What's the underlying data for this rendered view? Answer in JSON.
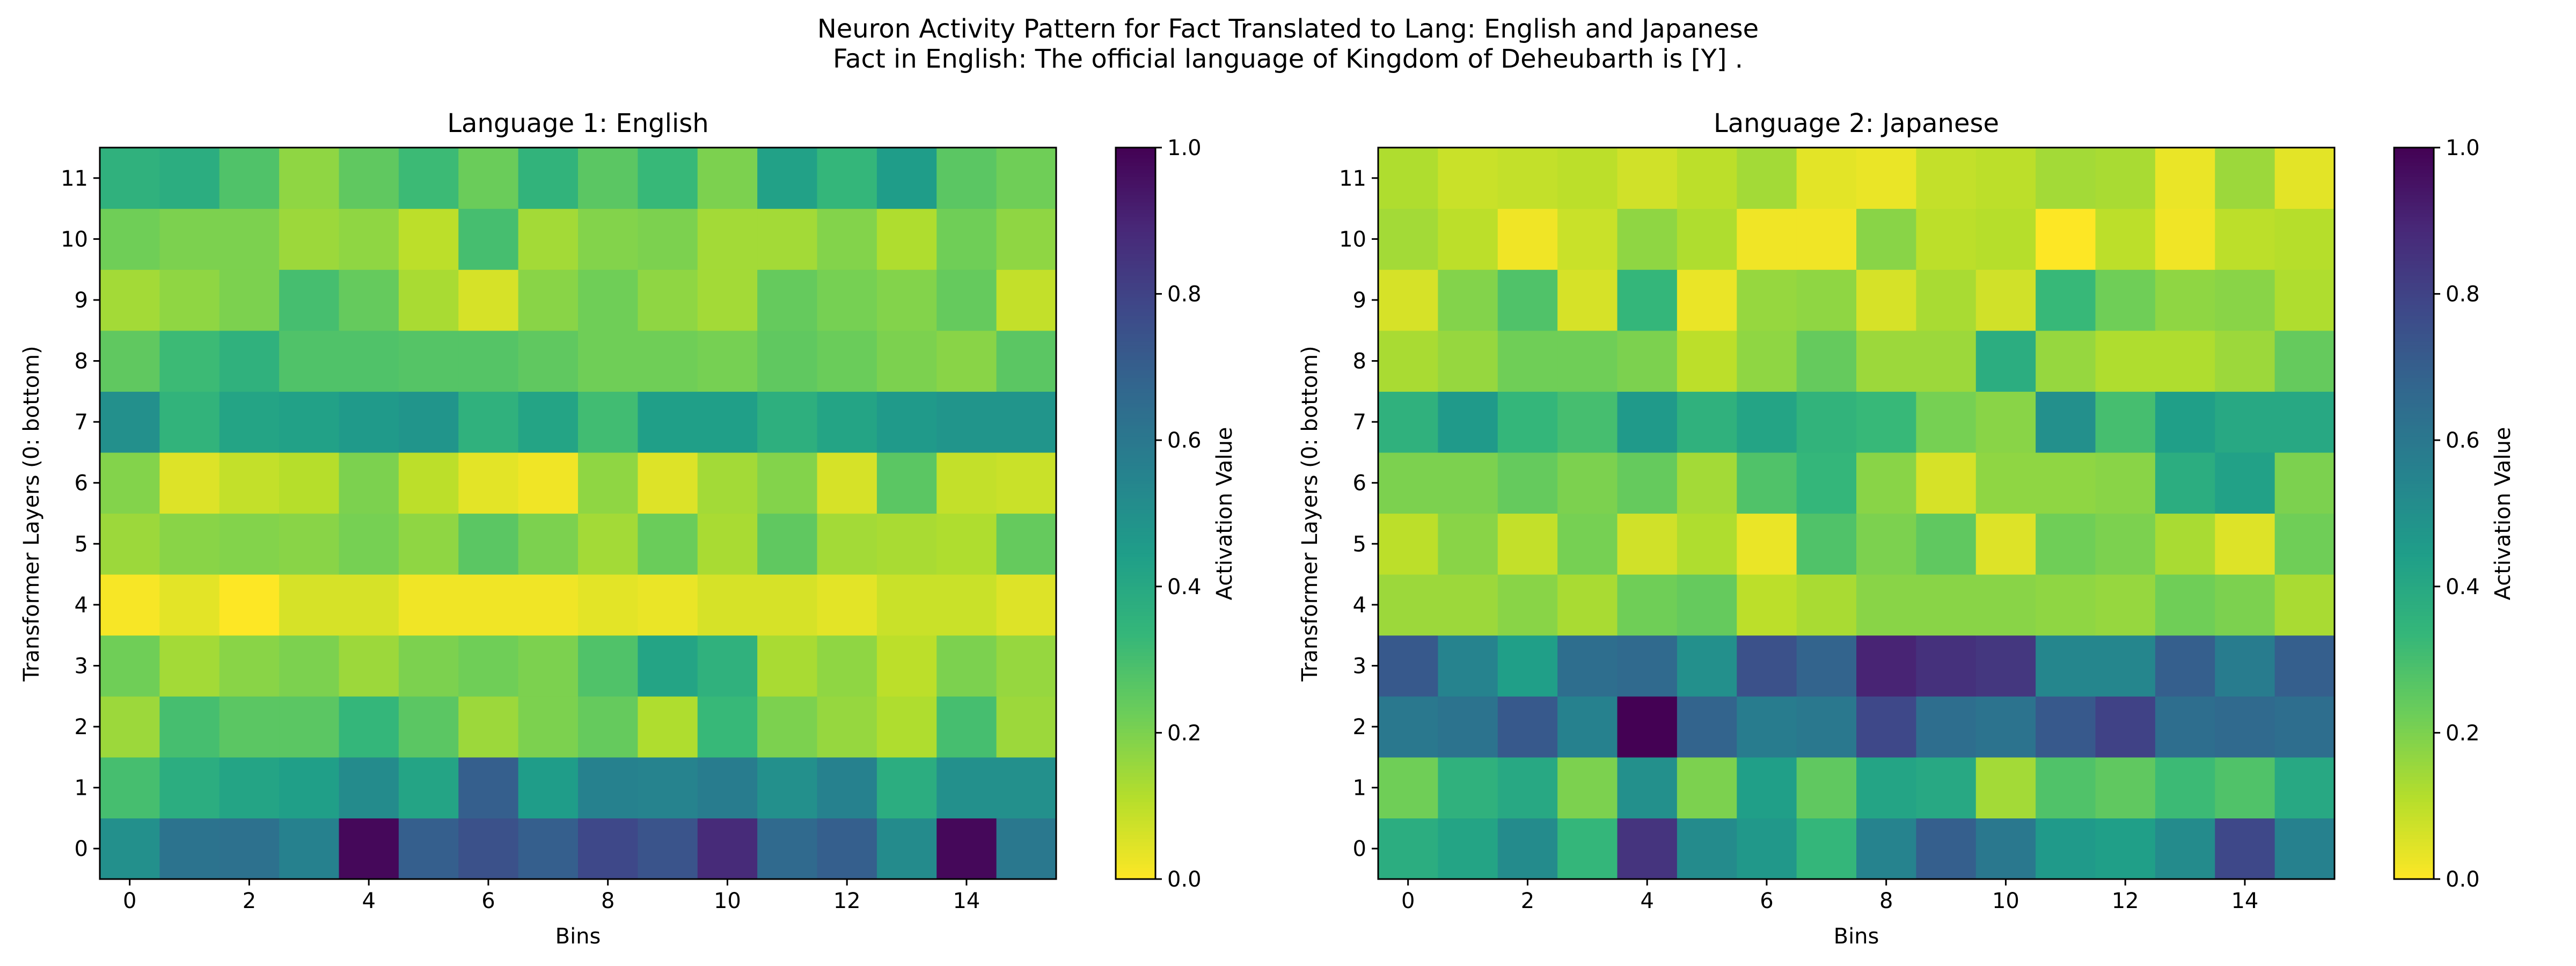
{
  "figure": {
    "title_line1": "Neuron Activity Pattern for Fact Translated to Lang: English and Japanese",
    "title_line2": "Fact in English: The official language of Kingdom of Deheubarth is [Y] ."
  },
  "colormap": "viridis_r",
  "colors": {
    "low": "#fde725",
    "mid": "#21918c",
    "high": "#440154"
  },
  "chart_data": [
    {
      "type": "heatmap",
      "title": "Language 1: English",
      "xlabel": "Bins",
      "ylabel": "Transformer Layers (0: bottom)",
      "colorbar_label": "Activation Value",
      "x_ticks": [
        "0",
        "2",
        "4",
        "6",
        "8",
        "10",
        "12",
        "14"
      ],
      "y_ticks": [
        "0",
        "1",
        "2",
        "3",
        "4",
        "5",
        "6",
        "7",
        "8",
        "9",
        "10",
        "11"
      ],
      "colorbar_ticks": [
        "0.0",
        "0.2",
        "0.4",
        "0.6",
        "0.8",
        "1.0"
      ],
      "vmin": 0.0,
      "vmax": 1.0,
      "bins": 16,
      "layers": 12,
      "values_by_layer": [
        [
          0.5,
          0.62,
          0.63,
          0.56,
          0.98,
          0.7,
          0.75,
          0.7,
          0.78,
          0.74,
          0.88,
          0.66,
          0.7,
          0.52,
          0.98,
          0.6
        ],
        [
          0.3,
          0.38,
          0.42,
          0.44,
          0.52,
          0.42,
          0.7,
          0.45,
          0.56,
          0.55,
          0.58,
          0.5,
          0.56,
          0.38,
          0.5,
          0.5
        ],
        [
          0.15,
          0.3,
          0.26,
          0.26,
          0.34,
          0.26,
          0.15,
          0.2,
          0.24,
          0.12,
          0.33,
          0.2,
          0.16,
          0.12,
          0.3,
          0.15
        ],
        [
          0.22,
          0.14,
          0.18,
          0.2,
          0.15,
          0.2,
          0.22,
          0.2,
          0.28,
          0.42,
          0.36,
          0.13,
          0.17,
          0.1,
          0.2,
          0.16
        ],
        [
          0.01,
          0.04,
          0.0,
          0.06,
          0.06,
          0.02,
          0.02,
          0.02,
          0.04,
          0.03,
          0.06,
          0.06,
          0.04,
          0.08,
          0.08,
          0.05
        ],
        [
          0.15,
          0.18,
          0.19,
          0.18,
          0.21,
          0.17,
          0.26,
          0.2,
          0.14,
          0.23,
          0.13,
          0.25,
          0.14,
          0.13,
          0.12,
          0.24
        ],
        [
          0.19,
          0.05,
          0.09,
          0.11,
          0.2,
          0.1,
          0.04,
          0.02,
          0.17,
          0.05,
          0.14,
          0.19,
          0.06,
          0.26,
          0.09,
          0.08
        ],
        [
          0.5,
          0.35,
          0.42,
          0.43,
          0.46,
          0.48,
          0.36,
          0.42,
          0.31,
          0.44,
          0.44,
          0.37,
          0.42,
          0.46,
          0.48,
          0.48
        ],
        [
          0.25,
          0.32,
          0.36,
          0.28,
          0.28,
          0.27,
          0.27,
          0.25,
          0.22,
          0.22,
          0.21,
          0.25,
          0.23,
          0.2,
          0.18,
          0.26
        ],
        [
          0.14,
          0.17,
          0.2,
          0.3,
          0.24,
          0.13,
          0.06,
          0.18,
          0.22,
          0.17,
          0.14,
          0.24,
          0.21,
          0.19,
          0.24,
          0.09
        ],
        [
          0.22,
          0.2,
          0.2,
          0.15,
          0.17,
          0.1,
          0.3,
          0.14,
          0.19,
          0.2,
          0.14,
          0.14,
          0.19,
          0.12,
          0.22,
          0.17
        ],
        [
          0.36,
          0.38,
          0.28,
          0.17,
          0.25,
          0.32,
          0.23,
          0.35,
          0.26,
          0.33,
          0.2,
          0.43,
          0.34,
          0.45,
          0.26,
          0.22
        ]
      ]
    },
    {
      "type": "heatmap",
      "title": "Language 2: Japanese",
      "xlabel": "Bins",
      "ylabel": "Transformer Layers (0: bottom)",
      "colorbar_label": "Activation Value",
      "x_ticks": [
        "0",
        "2",
        "4",
        "6",
        "8",
        "10",
        "12",
        "14"
      ],
      "y_ticks": [
        "0",
        "1",
        "2",
        "3",
        "4",
        "5",
        "6",
        "7",
        "8",
        "9",
        "10",
        "11"
      ],
      "colorbar_ticks": [
        "0.0",
        "0.2",
        "0.4",
        "0.6",
        "0.8",
        "1.0"
      ],
      "vmin": 0.0,
      "vmax": 1.0,
      "bins": 16,
      "layers": 12,
      "values_by_layer": [
        [
          0.38,
          0.42,
          0.52,
          0.34,
          0.85,
          0.52,
          0.47,
          0.34,
          0.55,
          0.7,
          0.6,
          0.46,
          0.44,
          0.52,
          0.78,
          0.56
        ],
        [
          0.22,
          0.36,
          0.4,
          0.2,
          0.5,
          0.2,
          0.44,
          0.25,
          0.42,
          0.4,
          0.14,
          0.28,
          0.25,
          0.32,
          0.28,
          0.4
        ],
        [
          0.6,
          0.62,
          0.72,
          0.56,
          1.0,
          0.68,
          0.58,
          0.6,
          0.78,
          0.64,
          0.62,
          0.72,
          0.8,
          0.64,
          0.66,
          0.64
        ],
        [
          0.72,
          0.55,
          0.44,
          0.64,
          0.66,
          0.5,
          0.75,
          0.68,
          0.9,
          0.86,
          0.84,
          0.54,
          0.54,
          0.7,
          0.58,
          0.7
        ],
        [
          0.15,
          0.15,
          0.18,
          0.13,
          0.22,
          0.24,
          0.1,
          0.13,
          0.18,
          0.18,
          0.18,
          0.17,
          0.16,
          0.22,
          0.2,
          0.13
        ],
        [
          0.1,
          0.18,
          0.09,
          0.21,
          0.07,
          0.12,
          0.03,
          0.28,
          0.2,
          0.25,
          0.05,
          0.22,
          0.2,
          0.13,
          0.05,
          0.22
        ],
        [
          0.2,
          0.2,
          0.24,
          0.2,
          0.24,
          0.14,
          0.28,
          0.34,
          0.18,
          0.06,
          0.17,
          0.17,
          0.18,
          0.38,
          0.43,
          0.2
        ],
        [
          0.36,
          0.46,
          0.34,
          0.3,
          0.46,
          0.36,
          0.42,
          0.35,
          0.33,
          0.21,
          0.18,
          0.5,
          0.3,
          0.44,
          0.4,
          0.4
        ],
        [
          0.13,
          0.16,
          0.22,
          0.22,
          0.2,
          0.1,
          0.17,
          0.24,
          0.15,
          0.15,
          0.38,
          0.16,
          0.12,
          0.12,
          0.15,
          0.24
        ],
        [
          0.06,
          0.19,
          0.28,
          0.06,
          0.34,
          0.03,
          0.16,
          0.17,
          0.06,
          0.13,
          0.07,
          0.33,
          0.22,
          0.17,
          0.18,
          0.12
        ],
        [
          0.14,
          0.1,
          0.02,
          0.08,
          0.17,
          0.12,
          0.02,
          0.02,
          0.18,
          0.1,
          0.11,
          0.0,
          0.1,
          0.02,
          0.1,
          0.11
        ],
        [
          0.12,
          0.08,
          0.09,
          0.1,
          0.07,
          0.1,
          0.14,
          0.04,
          0.03,
          0.09,
          0.1,
          0.14,
          0.13,
          0.03,
          0.15,
          0.04
        ]
      ]
    }
  ]
}
